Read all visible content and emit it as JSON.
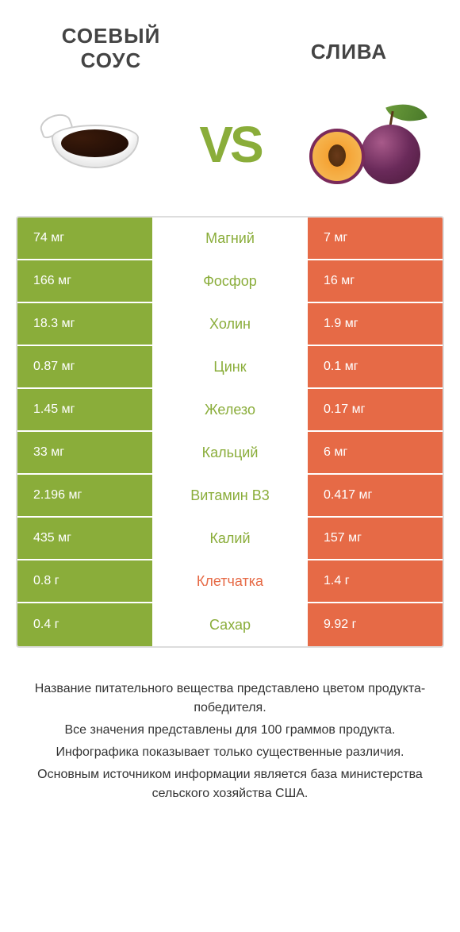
{
  "products": {
    "left": "СОЕВЫЙ СОУС",
    "right": "СЛИВА"
  },
  "vs": "VS",
  "colors": {
    "green": "#8aad3a",
    "orange": "#e66a46"
  },
  "rows": [
    {
      "left": "74 мг",
      "label": "Магний",
      "right": "7 мг",
      "winner": "left"
    },
    {
      "left": "166 мг",
      "label": "Фосфор",
      "right": "16 мг",
      "winner": "left"
    },
    {
      "left": "18.3 мг",
      "label": "Холин",
      "right": "1.9 мг",
      "winner": "left"
    },
    {
      "left": "0.87 мг",
      "label": "Цинк",
      "right": "0.1 мг",
      "winner": "left"
    },
    {
      "left": "1.45 мг",
      "label": "Железо",
      "right": "0.17 мг",
      "winner": "left"
    },
    {
      "left": "33 мг",
      "label": "Кальций",
      "right": "6 мг",
      "winner": "left"
    },
    {
      "left": "2.196 мг",
      "label": "Витамин B3",
      "right": "0.417 мг",
      "winner": "left"
    },
    {
      "left": "435 мг",
      "label": "Калий",
      "right": "157 мг",
      "winner": "left"
    },
    {
      "left": "0.8 г",
      "label": "Клетчатка",
      "right": "1.4 г",
      "winner": "right"
    },
    {
      "left": "0.4 г",
      "label": "Сахар",
      "right": "9.92 г",
      "winner": "left"
    }
  ],
  "footer": {
    "line1": "Название питательного вещества представлено цветом продукта-победителя.",
    "line2": "Все значения представлены для 100 граммов продукта.",
    "line3": "Инфографика показывает только существенные различия.",
    "line4": "Основным источником информации является база министерства сельского хозяйства США."
  }
}
